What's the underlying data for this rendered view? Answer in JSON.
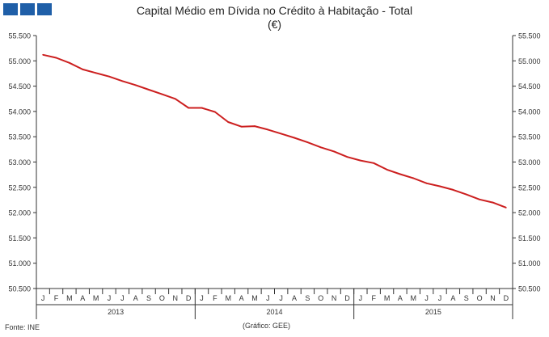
{
  "header": {
    "logo_color": "#1f5fa8",
    "title": "Capital Médio em Dívida no Crédito à Habitação - Total",
    "subtitle": "(€)"
  },
  "footer": {
    "source": "Fonte: INE",
    "credit": "(Gráfico: GEE)"
  },
  "chart_data": {
    "type": "line",
    "title": "Capital Médio em Dívida no Crédito à Habitação - Total",
    "subtitle": "(€)",
    "line_color": "#cc1f1f",
    "grid": false,
    "ylim": [
      50500,
      55500
    ],
    "y_ticks": [
      "50.500",
      "51.000",
      "51.500",
      "52.000",
      "52.500",
      "53.000",
      "53.500",
      "54.000",
      "54.500",
      "55.000",
      "55.500"
    ],
    "y_tick_values": [
      50500,
      51000,
      51500,
      52000,
      52500,
      53000,
      53500,
      54000,
      54500,
      55000,
      55500
    ],
    "month_labels": [
      "J",
      "F",
      "M",
      "A",
      "M",
      "J",
      "J",
      "A",
      "S",
      "O",
      "N",
      "D",
      "J",
      "F",
      "M",
      "A",
      "M",
      "J",
      "J",
      "A",
      "S",
      "O",
      "N",
      "D",
      "J",
      "F",
      "M",
      "A",
      "M",
      "J",
      "J",
      "A",
      "S",
      "O",
      "N",
      "D"
    ],
    "years": [
      "2013",
      "2014",
      "2015"
    ],
    "series": [
      {
        "values": [
          55120,
          55060,
          54960,
          54830,
          54760,
          54690,
          54600,
          54520,
          54430,
          54340,
          54250,
          54070,
          54070,
          53990,
          53790,
          53700,
          53710,
          53640,
          53560,
          53480,
          53390,
          53290,
          53210,
          53100,
          53030,
          52980,
          52850,
          52760,
          52680,
          52580,
          52520,
          52450,
          52360,
          52260,
          52200,
          52100
        ]
      }
    ]
  }
}
